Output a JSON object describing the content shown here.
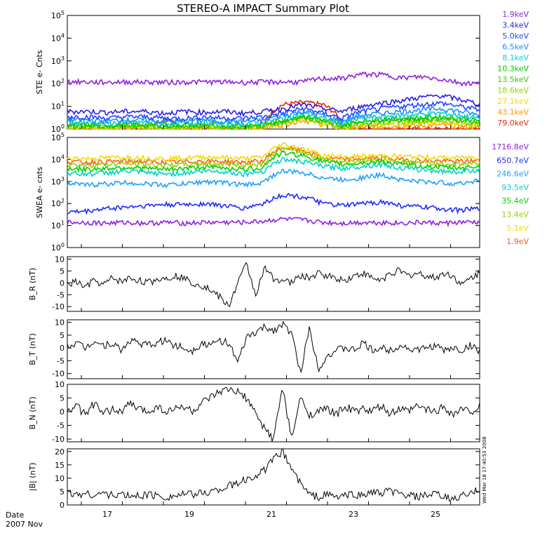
{
  "title": "STEREO-A IMPACT Summary Plot",
  "date_label": "Date",
  "date_month": "2007 Nov",
  "timestamp": "Wed Mar 18 17:40:53 2008",
  "x_ticks": [
    "17",
    "19",
    "21",
    "23",
    "25"
  ],
  "chart_data": [
    {
      "type": "line",
      "ylabel": "STE e- Cnts",
      "yscale": "log",
      "ylim": [
        1,
        100000
      ],
      "ytick_labels": [
        "10^0",
        "10^1",
        "10^2",
        "10^3",
        "10^4",
        "10^5"
      ],
      "series": [
        {
          "name": "1.9keV",
          "color": "#8e1fe0",
          "values": [
            120,
            118,
            115,
            120,
            118,
            115,
            118,
            120,
            118,
            115,
            120,
            118,
            120,
            170,
            170,
            260,
            250,
            180,
            200,
            160,
            110,
            100
          ]
        },
        {
          "name": "3.4keV",
          "color": "#2b1ee8",
          "values": [
            6,
            6,
            5.5,
            6,
            6,
            5,
            6,
            5.5,
            6,
            5,
            6,
            8,
            12,
            8,
            6,
            10,
            14,
            18,
            25,
            30,
            20,
            12
          ]
        },
        {
          "name": "5.0keV",
          "color": "#1e4aff",
          "values": [
            3.5,
            3.5,
            3,
            3.5,
            3.5,
            3,
            3,
            3.5,
            3,
            3,
            3.5,
            5,
            8,
            5,
            3,
            6,
            8,
            10,
            12,
            14,
            10,
            7
          ]
        },
        {
          "name": "6.5keV",
          "color": "#1e8cff",
          "values": [
            2.5,
            2.5,
            2.3,
            2.5,
            2.5,
            2.2,
            2.2,
            2.5,
            2.2,
            2.2,
            2.5,
            4,
            6,
            4,
            2.2,
            4,
            5,
            6,
            7,
            8,
            6,
            4
          ]
        },
        {
          "name": "8.1keV",
          "color": "#00d2d2",
          "values": [
            2,
            2,
            1.8,
            2,
            2,
            1.8,
            1.8,
            2,
            1.8,
            1.8,
            2,
            3,
            5,
            3,
            1.8,
            3,
            3.5,
            4,
            4.5,
            5,
            4,
            3
          ]
        },
        {
          "name": "10.3keV",
          "color": "#00c800",
          "values": [
            1.6,
            1.6,
            1.5,
            1.6,
            1.6,
            1.5,
            1.5,
            1.6,
            1.5,
            1.5,
            1.6,
            2.5,
            4,
            2.5,
            1.5,
            2.3,
            2.8,
            3,
            3.2,
            3.5,
            3,
            2.3
          ]
        },
        {
          "name": "13.5keV",
          "color": "#32cd00",
          "values": [
            1.4,
            1.4,
            1.3,
            1.4,
            1.4,
            1.3,
            1.3,
            1.4,
            1.3,
            1.3,
            1.4,
            2.2,
            3.5,
            2.2,
            1.3,
            1.9,
            2.3,
            2.5,
            2.7,
            2.9,
            2.5,
            1.9
          ]
        },
        {
          "name": "18.6keV",
          "color": "#96d200",
          "values": [
            1.3,
            1.3,
            1.2,
            1.3,
            1.3,
            1.2,
            1.2,
            1.3,
            1.2,
            1.2,
            1.3,
            2,
            3,
            2,
            1.2,
            1.6,
            1.9,
            2.1,
            2.3,
            2.4,
            2.1,
            1.6
          ]
        },
        {
          "name": "27.1keV",
          "color": "#f0dc00",
          "values": [
            1.2,
            1.2,
            1.1,
            1.2,
            1.2,
            1.1,
            1.1,
            1.2,
            1.1,
            1.1,
            1.2,
            1.8,
            2.8,
            1.8,
            1.1,
            1.4,
            1.6,
            1.7,
            1.8,
            1.9,
            1.7,
            1.4
          ]
        },
        {
          "name": "43.1keV",
          "color": "#ff9600",
          "values": [
            1.1,
            1.1,
            1.05,
            1.1,
            1.1,
            1.05,
            1.05,
            1.1,
            1.05,
            1.05,
            1.1,
            1.6,
            2.5,
            1.6,
            1.05,
            1.2,
            1.3,
            1.4,
            1.4,
            1.5,
            1.3,
            1.2
          ]
        },
        {
          "name": "79.0keV",
          "color": "#e62800",
          "values": [
            1,
            1,
            1,
            1,
            1,
            2.5,
            1,
            1,
            1,
            1,
            1,
            12,
            15,
            12,
            1,
            1,
            1,
            1,
            1,
            1,
            1,
            1
          ]
        }
      ]
    },
    {
      "type": "line",
      "ylabel": "SWEA e- cnts",
      "yscale": "log",
      "ylim": [
        1,
        100000
      ],
      "ytick_labels": [
        "10^0",
        "10^1",
        "10^2",
        "10^3",
        "10^4",
        "10^5"
      ],
      "series": [
        {
          "name": "1716.8eV",
          "color": "#8e1fe0",
          "values": [
            14,
            14,
            13,
            14,
            13,
            14,
            13,
            14,
            14,
            14,
            16,
            20,
            18,
            14,
            13,
            14,
            14,
            13,
            14,
            13,
            14,
            14
          ]
        },
        {
          "name": "650.7eV",
          "color": "#1e2aff",
          "values": [
            40,
            45,
            60,
            70,
            80,
            90,
            90,
            100,
            80,
            60,
            100,
            250,
            200,
            100,
            80,
            100,
            120,
            80,
            70,
            60,
            50,
            60
          ]
        },
        {
          "name": "246.6eV",
          "color": "#1ea0ff",
          "values": [
            800,
            700,
            800,
            900,
            800,
            700,
            800,
            1000,
            900,
            700,
            900,
            3000,
            2500,
            1500,
            1200,
            1500,
            2000,
            1200,
            1000,
            900,
            800,
            1200
          ]
        },
        {
          "name": "93.5eV",
          "color": "#00d2c8",
          "values": [
            2500,
            2200,
            2500,
            3000,
            2500,
            2200,
            2500,
            3000,
            2800,
            2200,
            3000,
            10000,
            8000,
            5000,
            4000,
            5000,
            6000,
            4000,
            3500,
            3000,
            2800,
            3500
          ]
        },
        {
          "name": "35.4eV",
          "color": "#00d200",
          "values": [
            4000,
            3500,
            4000,
            4500,
            4000,
            3500,
            4000,
            4500,
            4200,
            3500,
            4500,
            20000,
            15000,
            8000,
            6000,
            7000,
            8000,
            6000,
            5000,
            4500,
            4200,
            5000
          ]
        },
        {
          "name": "13.4eV",
          "color": "#96d200",
          "values": [
            6000,
            5500,
            6000,
            6500,
            6000,
            5500,
            6000,
            6500,
            6200,
            5500,
            6500,
            30000,
            20000,
            10000,
            8000,
            9000,
            10000,
            8000,
            7000,
            6500,
            6200,
            7000
          ]
        },
        {
          "name": "5.1eV",
          "color": "#f0dc00",
          "values": [
            12000,
            11000,
            12000,
            13000,
            12000,
            11000,
            12000,
            13000,
            12500,
            11000,
            13000,
            50000,
            30000,
            15000,
            13000,
            14000,
            15000,
            14000,
            13000,
            12000,
            12000,
            13000
          ]
        },
        {
          "name": "1.9eV",
          "color": "#ff5a1e",
          "values": [
            8000,
            7500,
            8000,
            8500,
            8000,
            7500,
            8000,
            8500,
            8200,
            7500,
            8500,
            35000,
            25000,
            12000,
            10000,
            11000,
            12000,
            10000,
            9000,
            8500,
            8200,
            9000
          ]
        }
      ]
    },
    {
      "type": "line",
      "ylabel": "B_R (nT)",
      "ylim": [
        -12,
        11
      ],
      "ytick_labels": [
        "10",
        "5",
        "0",
        "-5",
        "-10"
      ],
      "series": [
        {
          "name": "",
          "color": "#000000",
          "values": [
            -1,
            0.5,
            -2,
            1,
            -1,
            2,
            0.5,
            2,
            1,
            0,
            1.5,
            2,
            3,
            2,
            0,
            -1,
            -3,
            -6,
            -10,
            0,
            8,
            -5,
            6,
            2,
            1,
            0,
            3,
            2,
            4,
            3,
            2,
            1,
            3,
            4,
            2,
            1,
            4,
            5,
            3,
            4,
            3,
            2,
            4,
            3,
            -1,
            2,
            4
          ]
        }
      ]
    },
    {
      "type": "line",
      "ylabel": "B_T (nT)",
      "ylim": [
        -12,
        11
      ],
      "ytick_labels": [
        "10",
        "5",
        "0",
        "-5",
        "-10"
      ],
      "series": [
        {
          "name": "",
          "color": "#000000",
          "values": [
            1,
            2,
            0,
            3,
            1,
            2,
            -1,
            3,
            2,
            1,
            2,
            3,
            1,
            0,
            -1,
            2,
            1,
            3,
            2,
            -6,
            4,
            6,
            8,
            7,
            9,
            6,
            -10,
            8,
            -8,
            -3,
            -1,
            0,
            -1,
            2,
            -1,
            0,
            -1,
            1,
            0,
            -1,
            0,
            1,
            -1,
            0,
            -1,
            1,
            -1
          ]
        }
      ]
    },
    {
      "type": "line",
      "ylabel": "B_N (nT)",
      "ylim": [
        -11,
        10
      ],
      "ytick_labels": [
        "10",
        "5",
        "0",
        "-5",
        "-10"
      ],
      "series": [
        {
          "name": "",
          "color": "#000000",
          "values": [
            0,
            2,
            -1,
            3,
            -1,
            1,
            0,
            3,
            1,
            0,
            2,
            0,
            1,
            2,
            0,
            3,
            5,
            7,
            8,
            7,
            5,
            -1,
            -6,
            -10,
            9,
            -10,
            5,
            -1,
            0,
            1,
            -1,
            2,
            0,
            1,
            0,
            2,
            -1,
            1,
            0,
            2,
            1,
            0,
            2,
            -1,
            1,
            0,
            2
          ]
        }
      ]
    },
    {
      "type": "line",
      "ylabel": "|B| (nT)",
      "ylim": [
        0,
        21
      ],
      "ytick_labels": [
        "20",
        "15",
        "10",
        "5",
        "0"
      ],
      "series": [
        {
          "name": "",
          "color": "#000000",
          "values": [
            4.5,
            4,
            4.2,
            3.8,
            4.5,
            3.5,
            4,
            3.2,
            3.5,
            4,
            3.5,
            3,
            3.5,
            4,
            3.8,
            4.5,
            5,
            6,
            7,
            8,
            9.5,
            11,
            13,
            17,
            20,
            14,
            8,
            4,
            3,
            4,
            3,
            3.5,
            4,
            3.5,
            5,
            4,
            5.5,
            4,
            3.5,
            3,
            3.5,
            4,
            3,
            2,
            3.5,
            4,
            6
          ]
        }
      ]
    }
  ]
}
